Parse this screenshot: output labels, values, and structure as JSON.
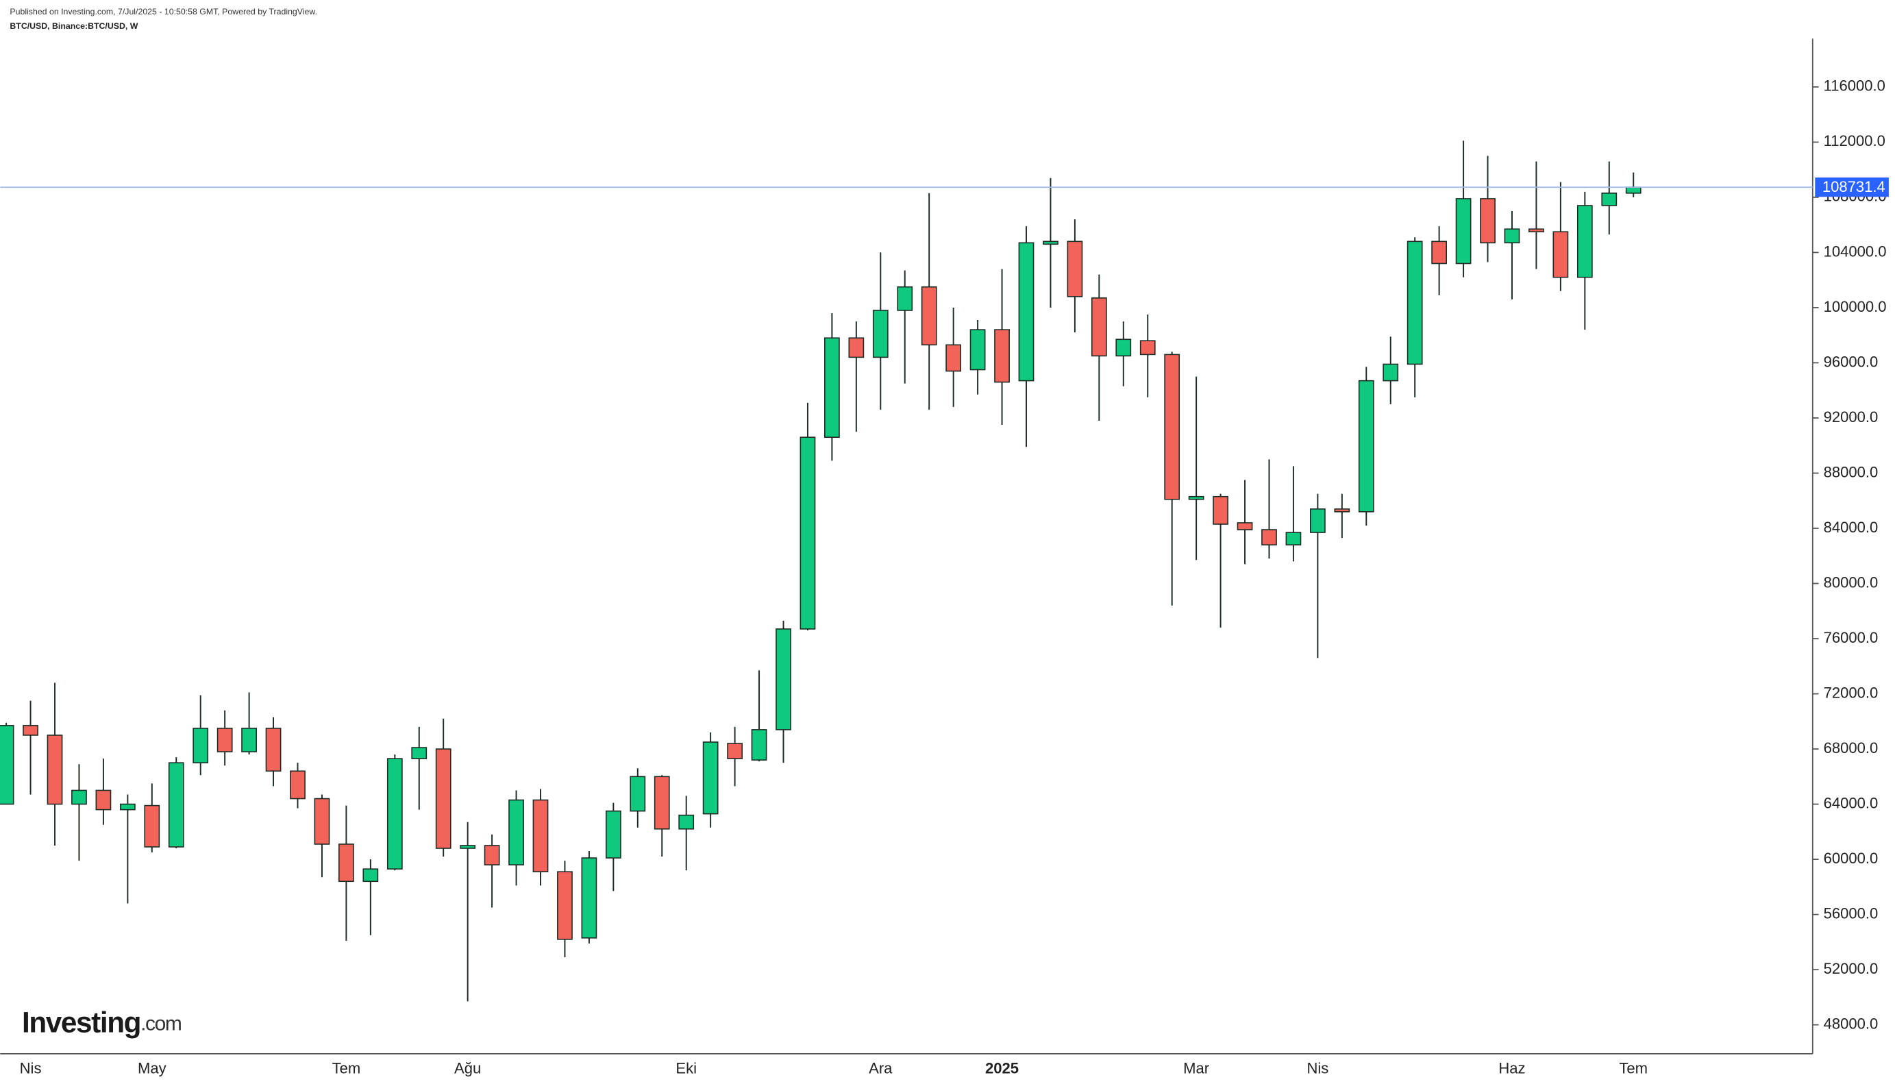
{
  "header": {
    "published": "Published on Investing.com, 7/Jul/2025 - 10:50:58 GMT, Powered by TradingView.",
    "symbol": "BTC/USD, Binance:BTC/USD, W"
  },
  "brand": {
    "name": "Investing",
    "suffix": ".com"
  },
  "chart_data": {
    "type": "candlestick",
    "categories": [
      null,
      "Nis",
      null,
      null,
      null,
      null,
      "May",
      null,
      null,
      null,
      null,
      null,
      null,
      null,
      "Tem",
      null,
      null,
      null,
      null,
      "Ağu",
      null,
      null,
      null,
      null,
      null,
      null,
      null,
      null,
      "Eki",
      null,
      null,
      null,
      null,
      null,
      null,
      null,
      "Ara",
      null,
      null,
      null,
      null,
      "2025",
      null,
      null,
      null,
      null,
      null,
      null,
      null,
      "Mar",
      null,
      null,
      null,
      null,
      "Nis",
      null,
      null,
      null,
      null,
      null,
      null,
      null,
      "Haz",
      null,
      null,
      null,
      null,
      "Tem"
    ],
    "open": [
      64000,
      69700,
      69000,
      64000,
      65000,
      63600,
      63900,
      60900,
      67000,
      69500,
      67800,
      69500,
      66400,
      64400,
      61100,
      58400,
      59300,
      67300,
      68000,
      60800,
      61000,
      59600,
      64300,
      59100,
      54300,
      60100,
      63500,
      66000,
      62200,
      63300,
      68400,
      67200,
      69400,
      76700,
      90600,
      97800,
      96400,
      99800,
      101500,
      97300,
      95500,
      98400,
      94700,
      104600,
      104800,
      100700,
      96500,
      97600,
      96600,
      86100,
      86300,
      84400,
      83900,
      82800,
      83700,
      85400,
      85200,
      94700,
      95900,
      104800,
      103200,
      107900,
      104700,
      105700,
      105500,
      102200,
      107400,
      108300
    ],
    "high": [
      69900,
      71500,
      72800,
      66900,
      67300,
      64700,
      65500,
      67400,
      71900,
      70800,
      72100,
      70300,
      67000,
      64700,
      63900,
      60000,
      67600,
      69600,
      70200,
      62700,
      61800,
      65000,
      65100,
      59900,
      60600,
      64100,
      66600,
      66100,
      64600,
      69200,
      69600,
      73700,
      77300,
      93100,
      99600,
      99000,
      104000,
      102700,
      108300,
      100000,
      99100,
      102800,
      105900,
      109400,
      106400,
      102400,
      99000,
      99500,
      96800,
      95000,
      86500,
      87500,
      89000,
      88500,
      86500,
      86500,
      95700,
      97900,
      105100,
      105900,
      112100,
      111000,
      107000,
      110600,
      109100,
      108400,
      110600,
      109800
    ],
    "low": [
      64000,
      64700,
      61000,
      59900,
      62500,
      56800,
      60500,
      60800,
      66100,
      66800,
      67600,
      65300,
      63700,
      58700,
      54100,
      54500,
      59200,
      63600,
      60200,
      49700,
      56500,
      58100,
      58100,
      52900,
      53900,
      57700,
      62300,
      60200,
      59200,
      62300,
      65300,
      67100,
      67000,
      76600,
      88900,
      91000,
      92600,
      94500,
      92600,
      92800,
      93700,
      91500,
      89900,
      100000,
      98200,
      91800,
      94300,
      93500,
      78400,
      81700,
      76800,
      81400,
      81800,
      81600,
      74600,
      83300,
      84200,
      93000,
      93500,
      100900,
      102200,
      103300,
      100600,
      102800,
      101200,
      98400,
      105300,
      108000
    ],
    "close": [
      69700,
      69000,
      64000,
      65000,
      63600,
      64000,
      60900,
      67000,
      69500,
      67800,
      69500,
      66400,
      64400,
      61100,
      58400,
      59300,
      67300,
      68100,
      60800,
      61000,
      59600,
      64300,
      59100,
      54200,
      60100,
      63500,
      66000,
      62200,
      63200,
      68500,
      67300,
      69400,
      76700,
      90600,
      97800,
      96400,
      99800,
      101500,
      97300,
      95400,
      98400,
      94600,
      104700,
      104800,
      100800,
      96500,
      97700,
      96600,
      86100,
      86300,
      84300,
      83900,
      82800,
      83700,
      85400,
      85200,
      94700,
      95900,
      104800,
      103200,
      107900,
      104700,
      105700,
      105500,
      102200,
      107400,
      108300,
      108731.4
    ],
    "up_color": "#0ec97e",
    "down_color": "#f2645a",
    "outline_color": "#1c2b24",
    "last_price": 108731.4,
    "last_price_color": "#2962ff",
    "ylim": [
      45900,
      119500
    ],
    "yticks": [
      {
        "value": 48000,
        "label": "48000.0"
      },
      {
        "value": 52000,
        "label": "52000.0"
      },
      {
        "value": 56000,
        "label": "56000.0"
      },
      {
        "value": 60000,
        "label": "60000.0"
      },
      {
        "value": 64000,
        "label": "64000.0"
      },
      {
        "value": 68000,
        "label": "68000.0"
      },
      {
        "value": 72000,
        "label": "72000.0"
      },
      {
        "value": 76000,
        "label": "76000.0"
      },
      {
        "value": 80000,
        "label": "80000.0"
      },
      {
        "value": 84000,
        "label": "84000.0"
      },
      {
        "value": 88000,
        "label": "88000.0"
      },
      {
        "value": 92000,
        "label": "92000.0"
      },
      {
        "value": 96000,
        "label": "96000.0"
      },
      {
        "value": 100000,
        "label": "100000.0"
      },
      {
        "value": 104000,
        "label": "104000.0"
      },
      {
        "value": 108000,
        "label": "108000.0"
      },
      {
        "value": 112000,
        "label": "112000.0"
      },
      {
        "value": 116000,
        "label": "116000.0"
      }
    ],
    "grid": false
  }
}
